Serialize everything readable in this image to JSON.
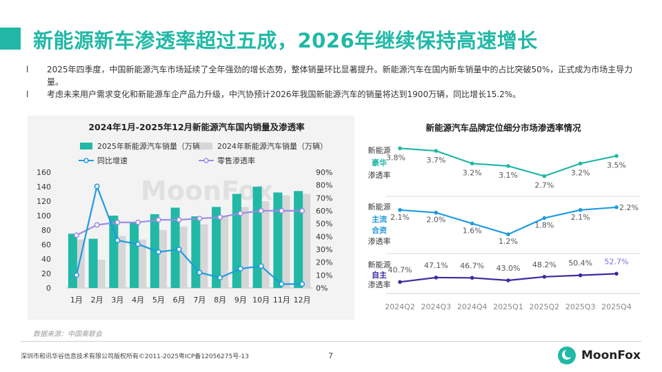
{
  "title": "新能源新车渗透率超过五成，2026年继续保持高速增长",
  "bullets": [
    {
      "mark": "l",
      "text": "2025年四季度，中国新能源汽车市场延续了全年强劲的增长态势，整体销量环比显著提升。新能源汽车在国内新车销量中的占比突破50%，正式成为市场主导力量。"
    },
    {
      "mark": "l",
      "text": "考虑未来用户需求变化和新能源车企产品力升级，中汽协预计2026年我国新能源汽车的销量将达到1900万辆，同比增长15.2%。"
    }
  ],
  "watermark": "MoonFox",
  "source": "数据来源：中国乘联会",
  "footer": {
    "copyright": "深圳市和讯华谷信息技术有限公司版权所有©2011-2025粤ICP备12056275号-13",
    "page": "7"
  },
  "logo": {
    "text": "MoonFox",
    "icon": "moonfox-logo-icon"
  },
  "colors": {
    "accent": "#21b8a6",
    "gray_bar": "#d6d6d6",
    "blue_line": "#1e9ae0",
    "purple_line": "#9b8ce6",
    "navy_line": "#3b2aa0",
    "panel_bg": "#f3f3f3"
  },
  "chart_data": [
    {
      "type": "bar",
      "title": "2024年1月-2025年12月新能源汽车国内销量及渗透率",
      "categories": [
        "1月",
        "2月",
        "3月",
        "4月",
        "5月",
        "6月",
        "7月",
        "8月",
        "9月",
        "10月",
        "11月",
        "12月"
      ],
      "series": [
        {
          "name": "2025年新能源汽车销量（万辆）",
          "kind": "bar",
          "axis": "left",
          "values": [
            75,
            68,
            100,
            90,
            102,
            111,
            99,
            112,
            130,
            140,
            132,
            134
          ]
        },
        {
          "name": "2024年新能源汽车销量（万辆）",
          "kind": "bar",
          "axis": "left",
          "values": [
            67,
            39,
            72,
            67,
            80,
            85,
            88,
            100,
            112,
            120,
            128,
            130
          ]
        },
        {
          "name": "同比增速",
          "kind": "line",
          "axis": "right",
          "values": [
            10,
            79,
            37,
            34,
            28,
            30,
            12,
            8,
            15,
            17,
            3,
            3
          ]
        },
        {
          "name": "零售渗透率",
          "kind": "line",
          "axis": "right",
          "values": [
            41,
            49,
            51,
            51,
            53,
            53,
            54,
            55,
            58,
            60,
            60,
            60
          ]
        }
      ],
      "ylim_left": [
        0,
        160
      ],
      "yticks_left": [
        "0",
        "20",
        "40",
        "60",
        "80",
        "100",
        "120",
        "140",
        "160"
      ],
      "ylim_right": [
        0,
        90
      ],
      "yticks_right": [
        "0%",
        "10%",
        "20%",
        "30%",
        "40%",
        "50%",
        "60%",
        "70%",
        "80%",
        "90%"
      ],
      "legend": "top"
    },
    {
      "type": "line",
      "title": "新能源汽车品牌定位细分市场渗透率情况",
      "categories": [
        "2024Q2",
        "2024Q3",
        "2024Q4",
        "2025Q1",
        "2025Q2",
        "2025Q3",
        "2025Q4"
      ],
      "series": [
        {
          "label_lines": [
            "新能源",
            "豪华",
            "渗透率"
          ],
          "values": [
            3.8,
            3.7,
            3.2,
            3.1,
            2.7,
            3.2,
            3.5
          ],
          "labels": [
            "3.8%",
            "3.7%",
            "3.2%",
            "3.1%",
            "2.7%",
            "3.2%",
            "3.5%"
          ]
        },
        {
          "label_lines": [
            "新能源",
            "主流",
            "合资",
            "渗透率"
          ],
          "values": [
            2.1,
            2.0,
            1.6,
            1.2,
            1.8,
            2.1,
            2.2
          ],
          "labels": [
            "2.1%",
            "2.0%",
            "1.6%",
            "1.2%",
            "1.8%",
            "2.1%",
            "2.2%"
          ]
        },
        {
          "label_lines": [
            "新能源",
            "自主",
            "渗透率"
          ],
          "values": [
            40.7,
            47.1,
            46.7,
            43.0,
            48.2,
            50.4,
            52.7
          ],
          "labels": [
            "40.7%",
            "47.1%",
            "46.7%",
            "43.0%",
            "48.2%",
            "50.4%",
            "52.7%"
          ]
        }
      ]
    }
  ]
}
